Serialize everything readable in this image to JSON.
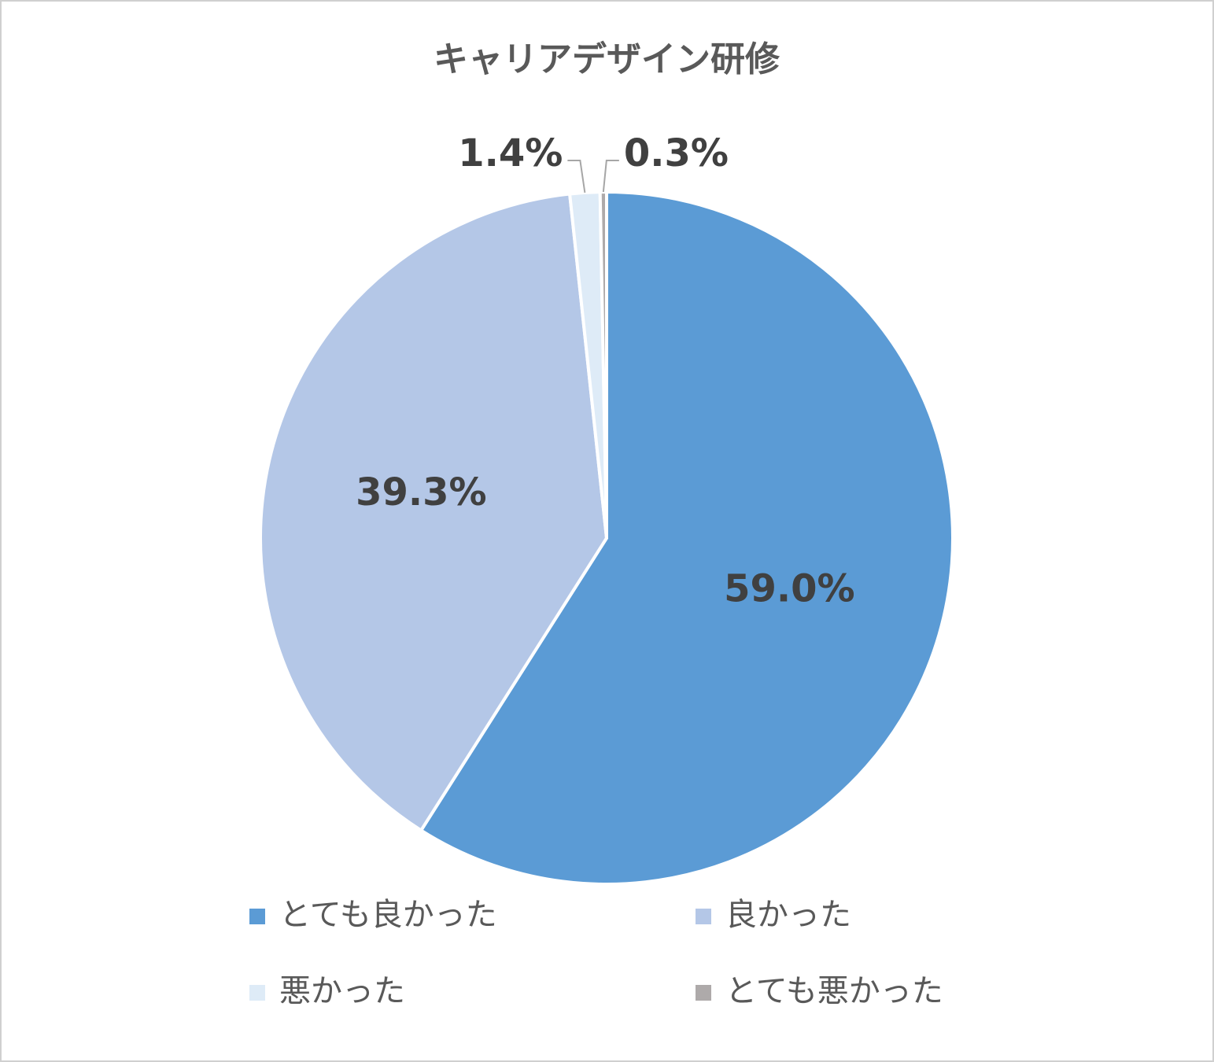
{
  "chart_data": {
    "type": "pie",
    "title": "キャリアデザイン研修",
    "categories": [
      "とても良かった",
      "良かった",
      "悪かった",
      "とても悪かった"
    ],
    "values": [
      59.0,
      39.3,
      1.4,
      0.3
    ],
    "value_labels": [
      "59.0%",
      "39.3%",
      "1.4%",
      "0.3%"
    ],
    "colors": [
      "#5b9bd5",
      "#b4c7e7",
      "#deebf7",
      "#aeaaaa"
    ]
  }
}
